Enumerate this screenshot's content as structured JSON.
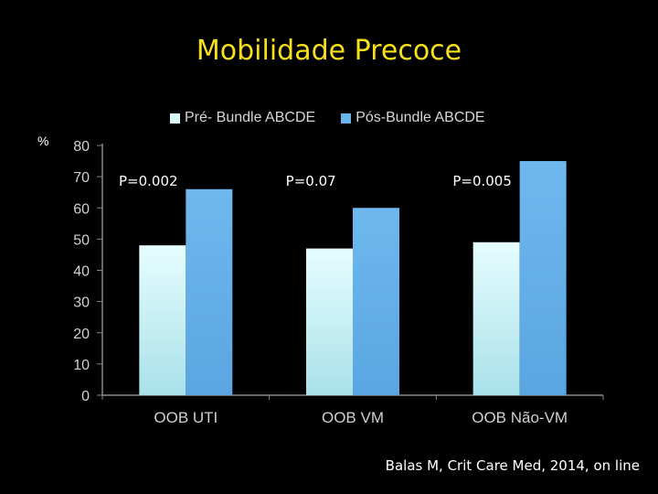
{
  "slide": {
    "title": "Mobilidade Precoce",
    "unit_label": "%",
    "source": "Balas M, Crit Care Med, 2014, on line"
  },
  "colors": {
    "title": "#f5e01a",
    "pre": "#d9fbfc",
    "pos": "#6ab4ec",
    "axis": "#8a8a8a",
    "text": "#d0d0d0"
  },
  "chart_data": {
    "type": "bar",
    "title": "",
    "xlabel": "",
    "ylabel": "%",
    "ylim": [
      0,
      80
    ],
    "yticks": [
      0,
      10,
      20,
      30,
      40,
      50,
      60,
      70,
      80
    ],
    "grid": false,
    "legend_position": "top",
    "categories": [
      "OOB UTI",
      "OOB VM",
      "OOB Não-VM"
    ],
    "series": [
      {
        "name": "Pré- Bundle ABCDE",
        "values": [
          48,
          47,
          49
        ]
      },
      {
        "name": "Pós-Bundle ABCDE",
        "values": [
          66,
          60,
          75
        ]
      }
    ],
    "annotations": [
      "P=0.002",
      "P=0.07",
      "P=0.005"
    ]
  }
}
